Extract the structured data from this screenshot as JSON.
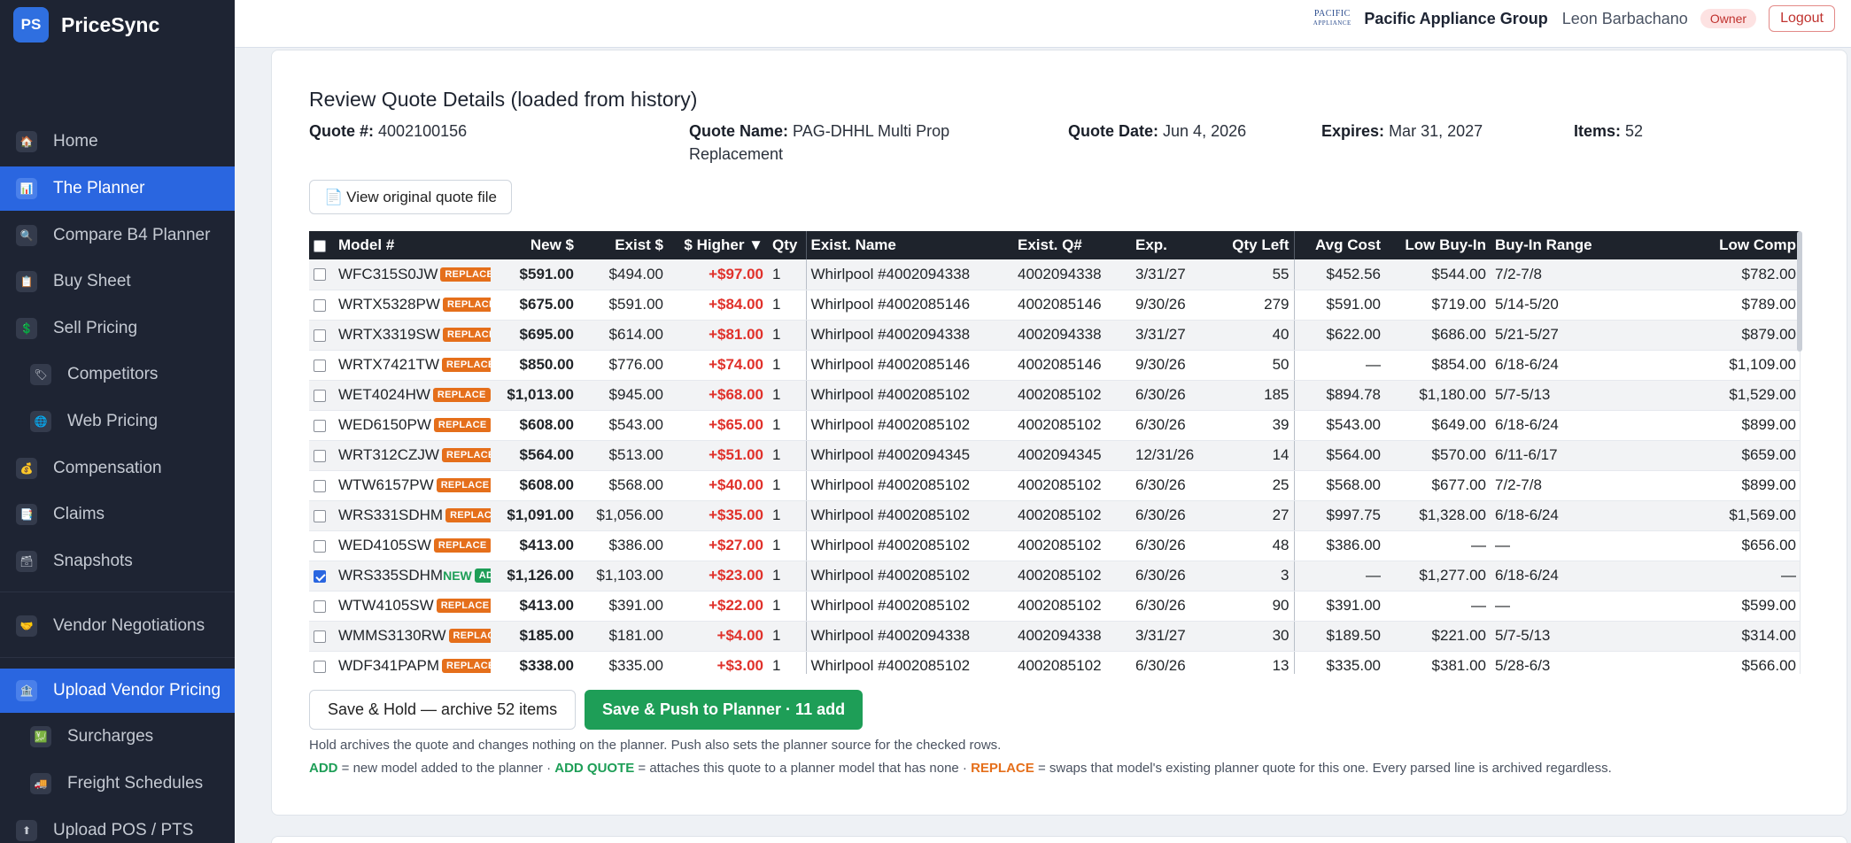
{
  "app": {
    "badge": "PS",
    "name": "PriceSync"
  },
  "sidebar": {
    "items": [
      {
        "label": "Home",
        "icon": "🏠"
      },
      {
        "label": "The Planner",
        "icon": "📊"
      },
      {
        "label": "Compare B4 Planner",
        "icon": "🔍"
      },
      {
        "label": "Buy Sheet",
        "icon": "📋"
      },
      {
        "label": "Sell Pricing",
        "icon": "💲"
      },
      {
        "label": "Competitors",
        "icon": "🏷"
      },
      {
        "label": "Web Pricing",
        "icon": "🌐"
      },
      {
        "label": "Compensation",
        "icon": "💰"
      },
      {
        "label": "Claims",
        "icon": "📑"
      },
      {
        "label": "Snapshots",
        "icon": "🗃"
      },
      {
        "label": "Vendor Negotiations",
        "icon": "🤝"
      },
      {
        "label": "Upload Vendor Pricing",
        "icon": "🏦"
      },
      {
        "label": "Surcharges",
        "icon": "💹"
      },
      {
        "label": "Freight Schedules",
        "icon": "🚚"
      },
      {
        "label": "Upload POS / PTS",
        "icon": "⬆"
      }
    ]
  },
  "topbar": {
    "org_logo_line1": "PACIFIC",
    "org_logo_line2": "APPLIANCE",
    "org_name": "Pacific Appliance Group",
    "user_name": "Leon Barbachano",
    "role": "Owner",
    "logout": "Logout"
  },
  "quote": {
    "title": "Review Quote Details (loaded from history)",
    "number_label": "Quote #:",
    "number": "4002100156",
    "name_label": "Quote Name:",
    "name_line1": "PAG-DHHL Multi Prop",
    "name_line2": "Replacement",
    "date_label": "Quote Date:",
    "date": "Jun 4, 2026",
    "expires_label": "Expires:",
    "expires": "Mar 31, 2027",
    "items_label": "Items:",
    "items": "52",
    "view_file_icon": "📄",
    "view_file": "View original quote file"
  },
  "table": {
    "columns": [
      "Model #",
      "New $",
      "Exist $",
      "$ Higher ▼",
      "Qty",
      "Exist. Name",
      "Exist. Q#",
      "Exp.",
      "Qty Left",
      "Avg Cost",
      "Low Buy-In",
      "Buy-In Range",
      "Low Comp"
    ],
    "rows": [
      {
        "checked": false,
        "model": "WFC315S0JW",
        "new_tag": "",
        "badge": "REPLACE",
        "new": "$591.00",
        "exist": "$494.00",
        "higher": "+$97.00",
        "qty": "1",
        "exist_name": "Whirlpool #4002094338",
        "exist_q": "4002094338",
        "exp": "3/31/27",
        "qty_left": "55",
        "avg_cost": "$452.56",
        "low_buy": "$544.00",
        "range": "7/2-7/8",
        "low_comp": "$782.00"
      },
      {
        "checked": false,
        "model": "WRTX5328PW",
        "new_tag": "",
        "badge": "REPLACE",
        "new": "$675.00",
        "exist": "$591.00",
        "higher": "+$84.00",
        "qty": "1",
        "exist_name": "Whirlpool #4002085146",
        "exist_q": "4002085146",
        "exp": "9/30/26",
        "qty_left": "279",
        "avg_cost": "$591.00",
        "low_buy": "$719.00",
        "range": "5/14-5/20",
        "low_comp": "$789.00"
      },
      {
        "checked": false,
        "model": "WRTX3319SW",
        "new_tag": "",
        "badge": "REPLACE",
        "new": "$695.00",
        "exist": "$614.00",
        "higher": "+$81.00",
        "qty": "1",
        "exist_name": "Whirlpool #4002094338",
        "exist_q": "4002094338",
        "exp": "3/31/27",
        "qty_left": "40",
        "avg_cost": "$622.00",
        "low_buy": "$686.00",
        "range": "5/21-5/27",
        "low_comp": "$879.00"
      },
      {
        "checked": false,
        "model": "WRTX7421TW",
        "new_tag": "",
        "badge": "REPLACE",
        "new": "$850.00",
        "exist": "$776.00",
        "higher": "+$74.00",
        "qty": "1",
        "exist_name": "Whirlpool #4002085146",
        "exist_q": "4002085146",
        "exp": "9/30/26",
        "qty_left": "50",
        "avg_cost": "—",
        "low_buy": "$854.00",
        "range": "6/18-6/24",
        "low_comp": "$1,109.00"
      },
      {
        "checked": false,
        "model": "WET4024HW",
        "new_tag": "",
        "badge": "REPLACE",
        "new": "$1,013.00",
        "exist": "$945.00",
        "higher": "+$68.00",
        "qty": "1",
        "exist_name": "Whirlpool #4002085102",
        "exist_q": "4002085102",
        "exp": "6/30/26",
        "qty_left": "185",
        "avg_cost": "$894.78",
        "low_buy": "$1,180.00",
        "range": "5/7-5/13",
        "low_comp": "$1,529.00"
      },
      {
        "checked": false,
        "model": "WED6150PW",
        "new_tag": "",
        "badge": "REPLACE",
        "new": "$608.00",
        "exist": "$543.00",
        "higher": "+$65.00",
        "qty": "1",
        "exist_name": "Whirlpool #4002085102",
        "exist_q": "4002085102",
        "exp": "6/30/26",
        "qty_left": "39",
        "avg_cost": "$543.00",
        "low_buy": "$649.00",
        "range": "6/18-6/24",
        "low_comp": "$899.00"
      },
      {
        "checked": false,
        "model": "WRT312CZJW",
        "new_tag": "",
        "badge": "REPLACE",
        "new": "$564.00",
        "exist": "$513.00",
        "higher": "+$51.00",
        "qty": "1",
        "exist_name": "Whirlpool #4002094345",
        "exist_q": "4002094345",
        "exp": "12/31/26",
        "qty_left": "14",
        "avg_cost": "$564.00",
        "low_buy": "$570.00",
        "range": "6/11-6/17",
        "low_comp": "$659.00"
      },
      {
        "checked": false,
        "model": "WTW6157PW",
        "new_tag": "",
        "badge": "REPLACE",
        "new": "$608.00",
        "exist": "$568.00",
        "higher": "+$40.00",
        "qty": "1",
        "exist_name": "Whirlpool #4002085102",
        "exist_q": "4002085102",
        "exp": "6/30/26",
        "qty_left": "25",
        "avg_cost": "$568.00",
        "low_buy": "$677.00",
        "range": "7/2-7/8",
        "low_comp": "$899.00"
      },
      {
        "checked": false,
        "model": "WRS331SDHM",
        "new_tag": "",
        "badge": "REPLACE",
        "new": "$1,091.00",
        "exist": "$1,056.00",
        "higher": "+$35.00",
        "qty": "1",
        "exist_name": "Whirlpool #4002085102",
        "exist_q": "4002085102",
        "exp": "6/30/26",
        "qty_left": "27",
        "avg_cost": "$997.75",
        "low_buy": "$1,328.00",
        "range": "6/18-6/24",
        "low_comp": "$1,569.00"
      },
      {
        "checked": false,
        "model": "WED4105SW",
        "new_tag": "",
        "badge": "REPLACE",
        "new": "$413.00",
        "exist": "$386.00",
        "higher": "+$27.00",
        "qty": "1",
        "exist_name": "Whirlpool #4002085102",
        "exist_q": "4002085102",
        "exp": "6/30/26",
        "qty_left": "48",
        "avg_cost": "$386.00",
        "low_buy": "—",
        "range": "—",
        "low_comp": "$656.00"
      },
      {
        "checked": true,
        "model": "WRS335SDHM",
        "new_tag": "NEW",
        "badge": "ADD",
        "new": "$1,126.00",
        "exist": "$1,103.00",
        "higher": "+$23.00",
        "qty": "1",
        "exist_name": "Whirlpool #4002085102",
        "exist_q": "4002085102",
        "exp": "6/30/26",
        "qty_left": "3",
        "avg_cost": "—",
        "low_buy": "$1,277.00",
        "range": "6/18-6/24",
        "low_comp": "—"
      },
      {
        "checked": false,
        "model": "WTW4105SW",
        "new_tag": "",
        "badge": "REPLACE",
        "new": "$413.00",
        "exist": "$391.00",
        "higher": "+$22.00",
        "qty": "1",
        "exist_name": "Whirlpool #4002085102",
        "exist_q": "4002085102",
        "exp": "6/30/26",
        "qty_left": "90",
        "avg_cost": "$391.00",
        "low_buy": "—",
        "range": "—",
        "low_comp": "$599.00"
      },
      {
        "checked": false,
        "model": "WMMS3130RW",
        "new_tag": "",
        "badge": "REPLACE",
        "new": "$185.00",
        "exist": "$181.00",
        "higher": "+$4.00",
        "qty": "1",
        "exist_name": "Whirlpool #4002094338",
        "exist_q": "4002094338",
        "exp": "3/31/27",
        "qty_left": "30",
        "avg_cost": "$189.50",
        "low_buy": "$221.00",
        "range": "5/7-5/13",
        "low_comp": "$314.00"
      },
      {
        "checked": false,
        "model": "WDF341PAPM",
        "new_tag": "",
        "badge": "REPLACE",
        "new": "$338.00",
        "exist": "$335.00",
        "higher": "+$3.00",
        "qty": "1",
        "exist_name": "Whirlpool #4002085102",
        "exist_q": "4002085102",
        "exp": "6/30/26",
        "qty_left": "13",
        "avg_cost": "$335.00",
        "low_buy": "$381.00",
        "range": "5/28-6/3",
        "low_comp": "$566.00"
      }
    ]
  },
  "actions": {
    "hold": "Save & Hold — archive 52 items",
    "push": "Save & Push to Planner · 11 add"
  },
  "notes": {
    "line1": "Hold archives the quote and changes nothing on the planner. Push also sets the planner source for the checked rows.",
    "add_term": "ADD",
    "add_desc": " = new model added to the planner · ",
    "addq_term": "ADD QUOTE",
    "addq_desc": " = attaches this quote to a planner model that has none · ",
    "replace_term": "REPLACE",
    "replace_desc": " = swaps that model's existing planner quote for this one. Every parsed line is archived regardless."
  },
  "colors": {
    "sidebar_bg": "#1e2433",
    "active": "#2a66e0",
    "push_green": "#1e9e57",
    "replace_orange": "#e56f1b",
    "higher_red": "#e0312b"
  }
}
